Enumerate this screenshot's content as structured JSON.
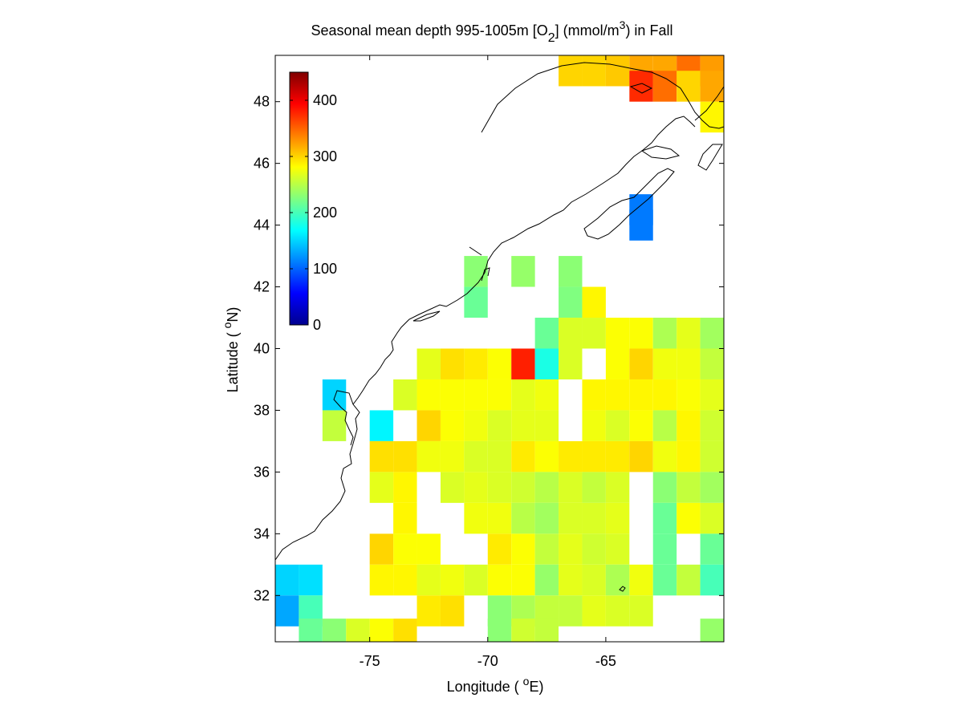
{
  "chart_data": {
    "type": "heatmap",
    "title": {
      "prefix": "Seasonal mean depth 995-1005m [O",
      "sub": "2",
      "middle": "] (mmol/m",
      "sup": "3",
      "suffix": ") in  Fall"
    },
    "xlabel": {
      "prefix": "Longitude ( ",
      "sup": "o",
      "suffix": "E)"
    },
    "ylabel": {
      "prefix": "Latitude ( ",
      "sup": "o",
      "suffix": "N)"
    },
    "xlim": [
      -79,
      -60
    ],
    "ylim": [
      30.5,
      49.5
    ],
    "xticks": [
      -75,
      -70,
      -65
    ],
    "yticks": [
      32,
      34,
      36,
      38,
      40,
      42,
      44,
      46,
      48
    ],
    "colorbar": {
      "vmin": 0,
      "vmax": 450,
      "ticks": [
        0,
        100,
        200,
        300,
        400
      ],
      "colormap": "jet",
      "placement": "top-left"
    },
    "cell_size_deg": 1,
    "cells": [
      {
        "lon": -66.5,
        "lat": 49,
        "value": 300
      },
      {
        "lon": -65.5,
        "lat": 49,
        "value": 300
      },
      {
        "lon": -64.5,
        "lat": 49,
        "value": 305
      },
      {
        "lon": -63.5,
        "lat": 49,
        "value": 320
      },
      {
        "lon": -62.5,
        "lat": 49,
        "value": 320
      },
      {
        "lon": -61.5,
        "lat": 49,
        "value": 345
      },
      {
        "lon": -60.5,
        "lat": 49,
        "value": 325
      },
      {
        "lon": -63.5,
        "lat": 48.5,
        "value": 375
      },
      {
        "lon": -62.5,
        "lat": 48.5,
        "value": 345
      },
      {
        "lon": -61.5,
        "lat": 48.5,
        "value": 300
      },
      {
        "lon": -60.5,
        "lat": 48.5,
        "value": 320
      },
      {
        "lon": -60.5,
        "lat": 47.5,
        "value": 285
      },
      {
        "lon": -63.5,
        "lat": 44.5,
        "value": 110
      },
      {
        "lon": -63.5,
        "lat": 44,
        "value": 110
      },
      {
        "lon": -70.5,
        "lat": 42.5,
        "value": 230
      },
      {
        "lon": -68.5,
        "lat": 42.5,
        "value": 235
      },
      {
        "lon": -66.5,
        "lat": 42.5,
        "value": 230
      },
      {
        "lon": -70.5,
        "lat": 41.5,
        "value": 215
      },
      {
        "lon": -66.5,
        "lat": 41.5,
        "value": 225
      },
      {
        "lon": -65.5,
        "lat": 41.5,
        "value": 285
      },
      {
        "lon": -67.5,
        "lat": 40.5,
        "value": 215
      },
      {
        "lon": -66.5,
        "lat": 40.5,
        "value": 265
      },
      {
        "lon": -65.5,
        "lat": 40.5,
        "value": 265
      },
      {
        "lon": -64.5,
        "lat": 40.5,
        "value": 280
      },
      {
        "lon": -63.5,
        "lat": 40.5,
        "value": 280
      },
      {
        "lon": -62.5,
        "lat": 40.5,
        "value": 245
      },
      {
        "lon": -61.5,
        "lat": 40.5,
        "value": 270
      },
      {
        "lon": -60.5,
        "lat": 40.5,
        "value": 240
      },
      {
        "lon": -72.5,
        "lat": 39.5,
        "value": 270
      },
      {
        "lon": -71.5,
        "lat": 39.5,
        "value": 295
      },
      {
        "lon": -70.5,
        "lat": 39.5,
        "value": 290
      },
      {
        "lon": -69.5,
        "lat": 39.5,
        "value": 280
      },
      {
        "lon": -68.5,
        "lat": 39.5,
        "value": 380
      },
      {
        "lon": -67.5,
        "lat": 39.5,
        "value": 180
      },
      {
        "lon": -66.5,
        "lat": 39.5,
        "value": 265
      },
      {
        "lon": -64.5,
        "lat": 39.5,
        "value": 280
      },
      {
        "lon": -63.5,
        "lat": 39.5,
        "value": 300
      },
      {
        "lon": -62.5,
        "lat": 39.5,
        "value": 275
      },
      {
        "lon": -61.5,
        "lat": 39.5,
        "value": 275
      },
      {
        "lon": -60.5,
        "lat": 39.5,
        "value": 255
      },
      {
        "lon": -76.5,
        "lat": 38.5,
        "value": 150
      },
      {
        "lon": -73.5,
        "lat": 38.5,
        "value": 265
      },
      {
        "lon": -72.5,
        "lat": 38.5,
        "value": 280
      },
      {
        "lon": -71.5,
        "lat": 38.5,
        "value": 280
      },
      {
        "lon": -70.5,
        "lat": 38.5,
        "value": 280
      },
      {
        "lon": -69.5,
        "lat": 38.5,
        "value": 280
      },
      {
        "lon": -68.5,
        "lat": 38.5,
        "value": 270
      },
      {
        "lon": -67.5,
        "lat": 38.5,
        "value": 275
      },
      {
        "lon": -65.5,
        "lat": 38.5,
        "value": 285
      },
      {
        "lon": -64.5,
        "lat": 38.5,
        "value": 285
      },
      {
        "lon": -63.5,
        "lat": 38.5,
        "value": 285
      },
      {
        "lon": -62.5,
        "lat": 38.5,
        "value": 285
      },
      {
        "lon": -61.5,
        "lat": 38.5,
        "value": 280
      },
      {
        "lon": -60.5,
        "lat": 38.5,
        "value": 270
      },
      {
        "lon": -76.5,
        "lat": 37.5,
        "value": 255
      },
      {
        "lon": -74.5,
        "lat": 37.5,
        "value": 165
      },
      {
        "lon": -72.5,
        "lat": 37.5,
        "value": 300
      },
      {
        "lon": -71.5,
        "lat": 37.5,
        "value": 280
      },
      {
        "lon": -70.5,
        "lat": 37.5,
        "value": 275
      },
      {
        "lon": -69.5,
        "lat": 37.5,
        "value": 265
      },
      {
        "lon": -68.5,
        "lat": 37.5,
        "value": 270
      },
      {
        "lon": -67.5,
        "lat": 37.5,
        "value": 270
      },
      {
        "lon": -65.5,
        "lat": 37.5,
        "value": 275
      },
      {
        "lon": -64.5,
        "lat": 37.5,
        "value": 265
      },
      {
        "lon": -63.5,
        "lat": 37.5,
        "value": 280
      },
      {
        "lon": -62.5,
        "lat": 37.5,
        "value": 250
      },
      {
        "lon": -61.5,
        "lat": 37.5,
        "value": 285
      },
      {
        "lon": -60.5,
        "lat": 37.5,
        "value": 260
      },
      {
        "lon": -74.5,
        "lat": 36.5,
        "value": 295
      },
      {
        "lon": -73.5,
        "lat": 36.5,
        "value": 295
      },
      {
        "lon": -72.5,
        "lat": 36.5,
        "value": 275
      },
      {
        "lon": -71.5,
        "lat": 36.5,
        "value": 275
      },
      {
        "lon": -70.5,
        "lat": 36.5,
        "value": 265
      },
      {
        "lon": -69.5,
        "lat": 36.5,
        "value": 265
      },
      {
        "lon": -68.5,
        "lat": 36.5,
        "value": 290
      },
      {
        "lon": -67.5,
        "lat": 36.5,
        "value": 280
      },
      {
        "lon": -66.5,
        "lat": 36.5,
        "value": 290
      },
      {
        "lon": -65.5,
        "lat": 36.5,
        "value": 290
      },
      {
        "lon": -64.5,
        "lat": 36.5,
        "value": 290
      },
      {
        "lon": -63.5,
        "lat": 36.5,
        "value": 300
      },
      {
        "lon": -62.5,
        "lat": 36.5,
        "value": 275
      },
      {
        "lon": -61.5,
        "lat": 36.5,
        "value": 285
      },
      {
        "lon": -60.5,
        "lat": 36.5,
        "value": 260
      },
      {
        "lon": -74.5,
        "lat": 35.5,
        "value": 270
      },
      {
        "lon": -73.5,
        "lat": 35.5,
        "value": 285
      },
      {
        "lon": -71.5,
        "lat": 35.5,
        "value": 265
      },
      {
        "lon": -70.5,
        "lat": 35.5,
        "value": 270
      },
      {
        "lon": -69.5,
        "lat": 35.5,
        "value": 265
      },
      {
        "lon": -68.5,
        "lat": 35.5,
        "value": 260
      },
      {
        "lon": -67.5,
        "lat": 35.5,
        "value": 250
      },
      {
        "lon": -66.5,
        "lat": 35.5,
        "value": 265
      },
      {
        "lon": -65.5,
        "lat": 35.5,
        "value": 255
      },
      {
        "lon": -64.5,
        "lat": 35.5,
        "value": 265
      },
      {
        "lon": -62.5,
        "lat": 35.5,
        "value": 230
      },
      {
        "lon": -61.5,
        "lat": 35.5,
        "value": 255
      },
      {
        "lon": -60.5,
        "lat": 35.5,
        "value": 240
      },
      {
        "lon": -73.5,
        "lat": 34.5,
        "value": 285
      },
      {
        "lon": -70.5,
        "lat": 34.5,
        "value": 275
      },
      {
        "lon": -69.5,
        "lat": 34.5,
        "value": 275
      },
      {
        "lon": -68.5,
        "lat": 34.5,
        "value": 250
      },
      {
        "lon": -67.5,
        "lat": 34.5,
        "value": 240
      },
      {
        "lon": -66.5,
        "lat": 34.5,
        "value": 265
      },
      {
        "lon": -65.5,
        "lat": 34.5,
        "value": 265
      },
      {
        "lon": -64.5,
        "lat": 34.5,
        "value": 270
      },
      {
        "lon": -62.5,
        "lat": 34.5,
        "value": 215
      },
      {
        "lon": -61.5,
        "lat": 34.5,
        "value": 280
      },
      {
        "lon": -60.5,
        "lat": 34.5,
        "value": 265
      },
      {
        "lon": -74.5,
        "lat": 33.5,
        "value": 300
      },
      {
        "lon": -73.5,
        "lat": 33.5,
        "value": 280
      },
      {
        "lon": -72.5,
        "lat": 33.5,
        "value": 280
      },
      {
        "lon": -69.5,
        "lat": 33.5,
        "value": 290
      },
      {
        "lon": -68.5,
        "lat": 33.5,
        "value": 280
      },
      {
        "lon": -67.5,
        "lat": 33.5,
        "value": 255
      },
      {
        "lon": -66.5,
        "lat": 33.5,
        "value": 270
      },
      {
        "lon": -65.5,
        "lat": 33.5,
        "value": 260
      },
      {
        "lon": -64.5,
        "lat": 33.5,
        "value": 265
      },
      {
        "lon": -62.5,
        "lat": 33.5,
        "value": 215
      },
      {
        "lon": -60.5,
        "lat": 33.5,
        "value": 215
      },
      {
        "lon": -78.5,
        "lat": 32.5,
        "value": 150
      },
      {
        "lon": -77.5,
        "lat": 32.5,
        "value": 155
      },
      {
        "lon": -74.5,
        "lat": 32.5,
        "value": 285
      },
      {
        "lon": -73.5,
        "lat": 32.5,
        "value": 285
      },
      {
        "lon": -72.5,
        "lat": 32.5,
        "value": 270
      },
      {
        "lon": -71.5,
        "lat": 32.5,
        "value": 275
      },
      {
        "lon": -70.5,
        "lat": 32.5,
        "value": 265
      },
      {
        "lon": -69.5,
        "lat": 32.5,
        "value": 280
      },
      {
        "lon": -68.5,
        "lat": 32.5,
        "value": 280
      },
      {
        "lon": -67.5,
        "lat": 32.5,
        "value": 235
      },
      {
        "lon": -66.5,
        "lat": 32.5,
        "value": 270
      },
      {
        "lon": -65.5,
        "lat": 32.5,
        "value": 265
      },
      {
        "lon": -64.5,
        "lat": 32.5,
        "value": 245
      },
      {
        "lon": -63.5,
        "lat": 32.5,
        "value": 275
      },
      {
        "lon": -62.5,
        "lat": 32.5,
        "value": 215
      },
      {
        "lon": -61.5,
        "lat": 32.5,
        "value": 255
      },
      {
        "lon": -60.5,
        "lat": 32.5,
        "value": 200
      },
      {
        "lon": -78.5,
        "lat": 31.5,
        "value": 130
      },
      {
        "lon": -77.5,
        "lat": 31.5,
        "value": 200
      },
      {
        "lon": -72.5,
        "lat": 31.5,
        "value": 290
      },
      {
        "lon": -71.5,
        "lat": 31.5,
        "value": 295
      },
      {
        "lon": -69.5,
        "lat": 31.5,
        "value": 230
      },
      {
        "lon": -68.5,
        "lat": 31.5,
        "value": 245
      },
      {
        "lon": -67.5,
        "lat": 31.5,
        "value": 255
      },
      {
        "lon": -66.5,
        "lat": 31.5,
        "value": 255
      },
      {
        "lon": -65.5,
        "lat": 31.5,
        "value": 270
      },
      {
        "lon": -64.5,
        "lat": 31.5,
        "value": 265
      },
      {
        "lon": -63.5,
        "lat": 31.5,
        "value": 265
      },
      {
        "lon": -77.5,
        "lat": 30.75,
        "value": 215
      },
      {
        "lon": -76.5,
        "lat": 30.75,
        "value": 230
      },
      {
        "lon": -75.5,
        "lat": 30.75,
        "value": 265
      },
      {
        "lon": -74.5,
        "lat": 30.75,
        "value": 280
      },
      {
        "lon": -73.5,
        "lat": 30.75,
        "value": 295
      },
      {
        "lon": -69.5,
        "lat": 30.75,
        "value": 230
      },
      {
        "lon": -68.5,
        "lat": 30.75,
        "value": 260
      },
      {
        "lon": -67.5,
        "lat": 30.75,
        "value": 255
      },
      {
        "lon": -60.5,
        "lat": 30.75,
        "value": 235
      }
    ]
  }
}
